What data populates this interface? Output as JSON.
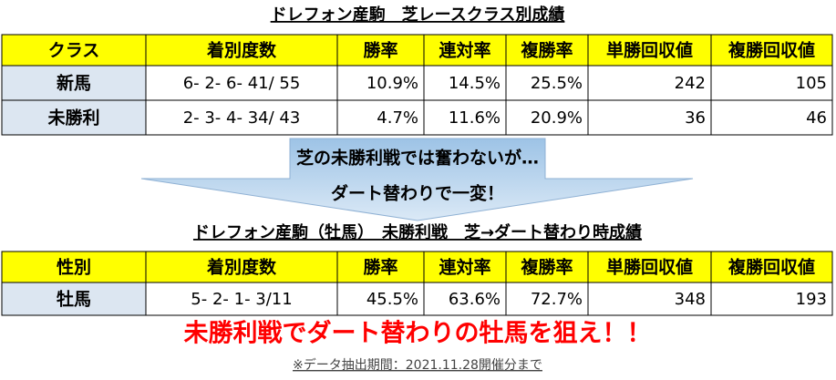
{
  "table1": {
    "title": "ドレフォン産駒　芝レースクラス別成績",
    "header": [
      "クラス",
      "着別度数",
      "勝率",
      "連対率",
      "複勝率",
      "単勝回収値",
      "複勝回収値"
    ],
    "rows": [
      [
        "新馬",
        "6-  2-  6- 41/ 55",
        "10.9%",
        "14.5%",
        "25.5%",
        "242",
        "105"
      ],
      [
        "未勝利",
        "2-  3-  4- 34/ 43",
        "4.7%",
        "11.6%",
        "20.9%",
        "36",
        "46"
      ]
    ]
  },
  "arrow": {
    "line1": "芝の未勝利戦では奮わないが…",
    "line2": "ダート替わりで一変！"
  },
  "table2": {
    "title": "ドレフォン産駒（牡馬）　未勝利戦　芝→ダート替わり時成績",
    "header": [
      "性別",
      "着別度数",
      "勝率",
      "連対率",
      "複勝率",
      "単勝回収値",
      "複勝回収値"
    ],
    "rows": [
      [
        "牡馬",
        "5- 2- 1- 3/11",
        "45.5%",
        "63.6%",
        "72.7%",
        "348",
        "193"
      ]
    ]
  },
  "slogan": "未勝利戦でダート替わりの牡馬を狙え！！",
  "footnote": "※データ抽出期間：2021.11.28開催分まで"
}
